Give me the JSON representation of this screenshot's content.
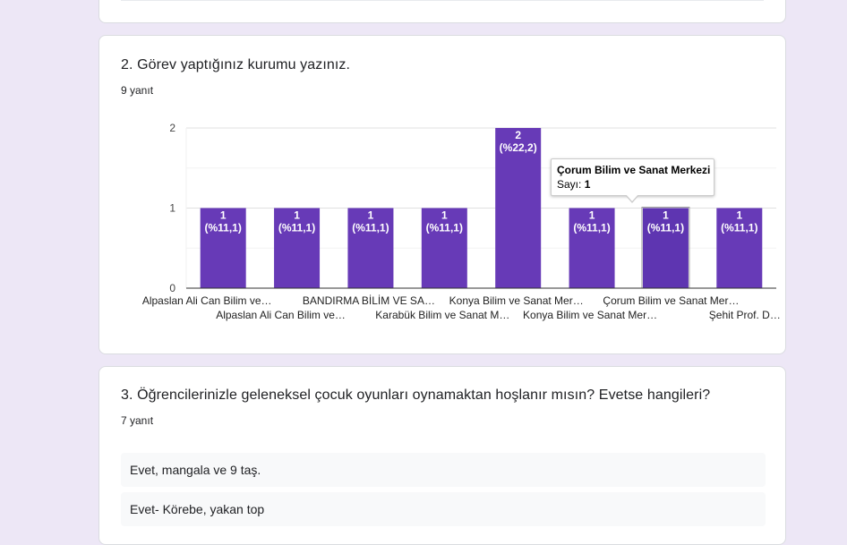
{
  "q2": {
    "title": "2. Görev yaptığınız kurumu yazınız.",
    "response_count": "9 yanıt"
  },
  "q3": {
    "title": "3. Öğrencilerinizle geleneksel çocuk oyunları oynamaktan hoşlanır mısın? Evetse hangileri?",
    "response_count": "7 yanıt",
    "answers": [
      "Evet, mangala ve 9 taş.",
      "Evet- Körebe, yakan top"
    ]
  },
  "tooltip": {
    "title": "Çorum Bilim ve Sanat Merkezi",
    "count_label": "Sayı:",
    "count_value": "1"
  },
  "colors": {
    "bar": "#673ab7",
    "bar_highlight": "#5e35b1",
    "background": "#ede7f6",
    "grid": "#e6e6e6",
    "axis": "#333333"
  },
  "chart_data": {
    "type": "bar",
    "categories": [
      "Alpaslan Ali Can Bilim ve…",
      "Alpaslan Ali Can Bilim ve…",
      "BANDIRMA BİLİM VE SA…",
      "Karabük Bilim ve Sanat M…",
      "Konya Bilim ve Sanat Mer…",
      "Konya Bilim ve Sanat Mer…",
      "Çorum Bilim ve Sanat Mer…",
      "Şehit Prof. D…"
    ],
    "values": [
      1,
      1,
      1,
      1,
      2,
      1,
      1,
      1
    ],
    "value_labels": [
      "1",
      "1",
      "1",
      "1",
      "2",
      "1",
      "1",
      "1"
    ],
    "percent_labels": [
      "(%11,1)",
      "(%11,1)",
      "(%11,1)",
      "(%11,1)",
      "(%22,2)",
      "(%11,1)",
      "(%11,1)",
      "(%11,1)"
    ],
    "y_ticks": [
      "0",
      "1",
      "2"
    ],
    "ylim": [
      0,
      2
    ],
    "highlighted_index": 6,
    "title": "",
    "xlabel": "",
    "ylabel": ""
  }
}
